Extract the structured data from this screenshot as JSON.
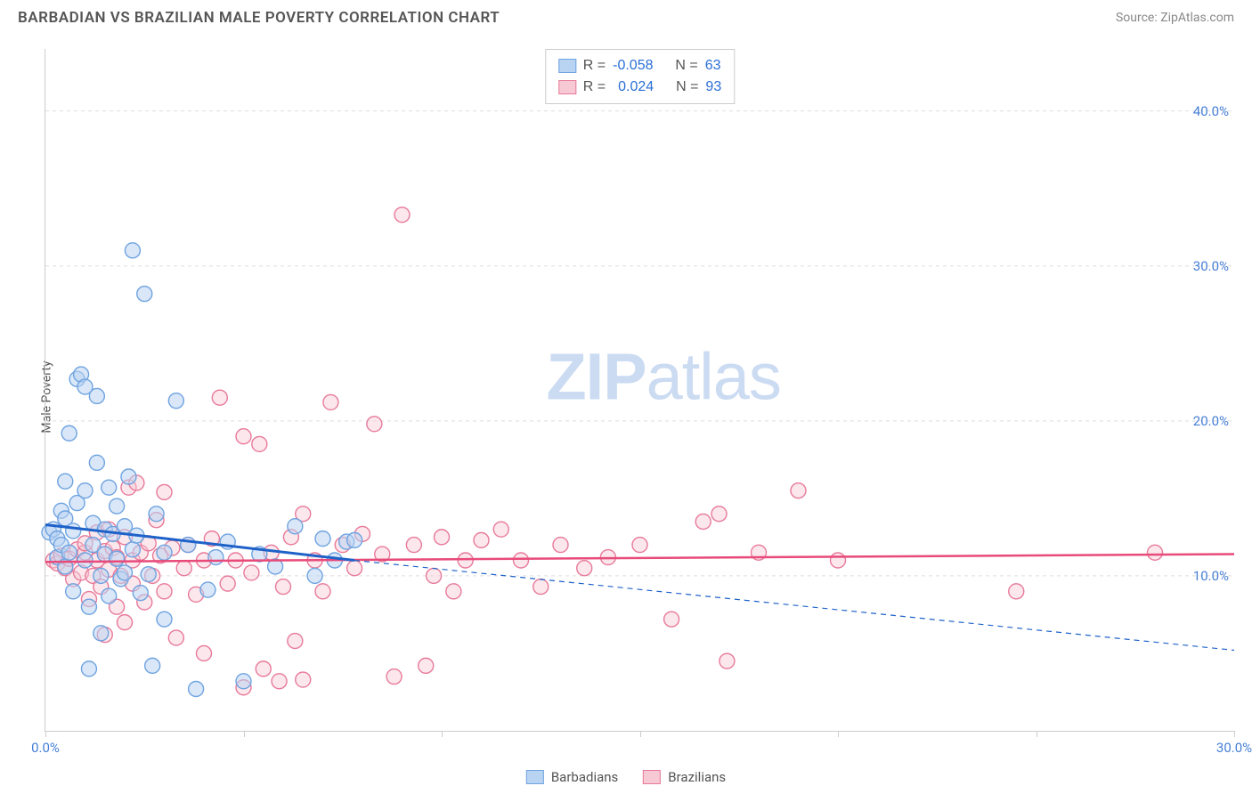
{
  "header": {
    "title": "BARBADIAN VS BRAZILIAN MALE POVERTY CORRELATION CHART",
    "source_label": "Source: ZipAtlas.com"
  },
  "watermark": {
    "zip": "ZIP",
    "atlas": "atlas"
  },
  "chart": {
    "type": "scatter",
    "ylabel": "Male Poverty",
    "xlim": [
      0,
      30
    ],
    "ylim": [
      0,
      44
    ],
    "xtick_step": 5,
    "ytick_step": 10,
    "xtick_labels": {
      "0": "0.0%",
      "30": "30.0%"
    },
    "ytick_labels": {
      "10": "10.0%",
      "20": "20.0%",
      "30": "30.0%",
      "40": "40.0%"
    },
    "background_color": "#ffffff",
    "grid_color": "#dddddd",
    "axis_color": "#cccccc",
    "tick_label_color": "#467fd7",
    "marker_radius": 8.5,
    "marker_stroke_width": 1.4,
    "series": {
      "barbadians": {
        "label": "Barbadians",
        "fill": "#b9d4f3",
        "stroke": "#6fa3e0",
        "fill_opacity": 0.55,
        "R": "-0.058",
        "N": "63",
        "trend": {
          "solid_from_x": 0,
          "solid_to_x": 7.8,
          "y_start": 13.3,
          "y_at_solid_end": 11.0,
          "y_end": 5.2,
          "color": "#1e62c9",
          "width": 3
        },
        "points": [
          [
            0.1,
            12.8
          ],
          [
            0.2,
            13.0
          ],
          [
            0.3,
            12.4
          ],
          [
            0.3,
            11.2
          ],
          [
            0.4,
            14.2
          ],
          [
            0.4,
            12.0
          ],
          [
            0.5,
            10.6
          ],
          [
            0.5,
            13.7
          ],
          [
            0.5,
            16.1
          ],
          [
            0.6,
            19.2
          ],
          [
            0.6,
            11.5
          ],
          [
            0.7,
            12.9
          ],
          [
            0.7,
            9.0
          ],
          [
            0.8,
            14.7
          ],
          [
            0.8,
            22.7
          ],
          [
            0.9,
            23.0
          ],
          [
            1.0,
            22.2
          ],
          [
            1.0,
            15.5
          ],
          [
            1.0,
            11.0
          ],
          [
            1.1,
            8.0
          ],
          [
            1.1,
            4.0
          ],
          [
            1.2,
            12.0
          ],
          [
            1.2,
            13.4
          ],
          [
            1.3,
            17.3
          ],
          [
            1.3,
            21.6
          ],
          [
            1.4,
            10.0
          ],
          [
            1.4,
            6.3
          ],
          [
            1.5,
            13.0
          ],
          [
            1.5,
            11.4
          ],
          [
            1.6,
            8.7
          ],
          [
            1.6,
            15.7
          ],
          [
            1.7,
            12.7
          ],
          [
            1.8,
            11.1
          ],
          [
            1.8,
            14.5
          ],
          [
            1.9,
            9.8
          ],
          [
            2.0,
            13.2
          ],
          [
            2.0,
            10.2
          ],
          [
            2.1,
            16.4
          ],
          [
            2.2,
            11.7
          ],
          [
            2.2,
            31.0
          ],
          [
            2.3,
            12.6
          ],
          [
            2.4,
            8.9
          ],
          [
            2.5,
            28.2
          ],
          [
            2.6,
            10.1
          ],
          [
            2.7,
            4.2
          ],
          [
            2.8,
            14.0
          ],
          [
            3.0,
            11.5
          ],
          [
            3.0,
            7.2
          ],
          [
            3.3,
            21.3
          ],
          [
            3.6,
            12.0
          ],
          [
            3.8,
            2.7
          ],
          [
            4.1,
            9.1
          ],
          [
            4.3,
            11.2
          ],
          [
            4.6,
            12.2
          ],
          [
            5.0,
            3.2
          ],
          [
            5.4,
            11.4
          ],
          [
            5.8,
            10.6
          ],
          [
            6.3,
            13.2
          ],
          [
            6.8,
            10.0
          ],
          [
            7.0,
            12.4
          ],
          [
            7.3,
            11.0
          ],
          [
            7.6,
            12.2
          ],
          [
            7.8,
            12.3
          ]
        ]
      },
      "brazilians": {
        "label": "Brazilians",
        "fill": "#f7c9d5",
        "stroke": "#e87a9a",
        "fill_opacity": 0.45,
        "R": "0.024",
        "N": "93",
        "trend": {
          "y_start": 10.9,
          "y_end": 11.4,
          "color": "#e84a7a",
          "width": 2.5
        },
        "points": [
          [
            0.2,
            11.0
          ],
          [
            0.3,
            10.8
          ],
          [
            0.4,
            11.3
          ],
          [
            0.5,
            10.5
          ],
          [
            0.6,
            11.1
          ],
          [
            0.7,
            9.8
          ],
          [
            0.8,
            11.7
          ],
          [
            0.9,
            10.2
          ],
          [
            1.0,
            11.5
          ],
          [
            1.0,
            12.1
          ],
          [
            1.1,
            8.5
          ],
          [
            1.2,
            10.0
          ],
          [
            1.3,
            12.8
          ],
          [
            1.3,
            11.0
          ],
          [
            1.4,
            9.3
          ],
          [
            1.5,
            11.6
          ],
          [
            1.5,
            6.2
          ],
          [
            1.6,
            10.4
          ],
          [
            1.6,
            13.0
          ],
          [
            1.7,
            11.8
          ],
          [
            1.8,
            8.0
          ],
          [
            1.8,
            11.2
          ],
          [
            1.9,
            10.0
          ],
          [
            2.0,
            7.0
          ],
          [
            2.0,
            12.5
          ],
          [
            2.1,
            15.7
          ],
          [
            2.2,
            9.5
          ],
          [
            2.2,
            11.0
          ],
          [
            2.3,
            16.0
          ],
          [
            2.4,
            11.5
          ],
          [
            2.5,
            8.3
          ],
          [
            2.6,
            12.1
          ],
          [
            2.7,
            10.0
          ],
          [
            2.8,
            13.6
          ],
          [
            2.9,
            11.3
          ],
          [
            3.0,
            9.0
          ],
          [
            3.0,
            15.4
          ],
          [
            3.2,
            11.8
          ],
          [
            3.3,
            6.0
          ],
          [
            3.5,
            10.5
          ],
          [
            3.6,
            12.0
          ],
          [
            3.8,
            8.8
          ],
          [
            4.0,
            11.0
          ],
          [
            4.0,
            5.0
          ],
          [
            4.2,
            12.4
          ],
          [
            4.4,
            21.5
          ],
          [
            4.6,
            9.5
          ],
          [
            4.8,
            11.0
          ],
          [
            5.0,
            2.8
          ],
          [
            5.0,
            19.0
          ],
          [
            5.2,
            10.2
          ],
          [
            5.4,
            18.5
          ],
          [
            5.5,
            4.0
          ],
          [
            5.7,
            11.5
          ],
          [
            5.9,
            3.2
          ],
          [
            6.0,
            9.3
          ],
          [
            6.2,
            12.5
          ],
          [
            6.3,
            5.8
          ],
          [
            6.5,
            14.0
          ],
          [
            6.5,
            3.3
          ],
          [
            6.8,
            11.0
          ],
          [
            7.0,
            9.0
          ],
          [
            7.2,
            21.2
          ],
          [
            7.5,
            12.0
          ],
          [
            7.8,
            10.5
          ],
          [
            8.0,
            12.7
          ],
          [
            8.3,
            19.8
          ],
          [
            8.5,
            11.4
          ],
          [
            8.8,
            3.5
          ],
          [
            9.0,
            33.3
          ],
          [
            9.3,
            12.0
          ],
          [
            9.6,
            4.2
          ],
          [
            9.8,
            10.0
          ],
          [
            10.0,
            12.5
          ],
          [
            10.3,
            9.0
          ],
          [
            10.6,
            11.0
          ],
          [
            11.0,
            12.3
          ],
          [
            11.5,
            13.0
          ],
          [
            12.0,
            11.0
          ],
          [
            12.5,
            9.3
          ],
          [
            13.0,
            12.0
          ],
          [
            13.6,
            10.5
          ],
          [
            14.2,
            11.2
          ],
          [
            15.0,
            12.0
          ],
          [
            15.8,
            7.2
          ],
          [
            16.6,
            13.5
          ],
          [
            17.0,
            14.0
          ],
          [
            17.2,
            4.5
          ],
          [
            18.0,
            11.5
          ],
          [
            19.0,
            15.5
          ],
          [
            20.0,
            11.0
          ],
          [
            24.5,
            9.0
          ],
          [
            28.0,
            11.5
          ]
        ]
      }
    }
  },
  "stats_box": {
    "R_label": "R =",
    "N_label": "N ="
  },
  "legend": {
    "items": [
      "barbadians",
      "brazilians"
    ]
  }
}
